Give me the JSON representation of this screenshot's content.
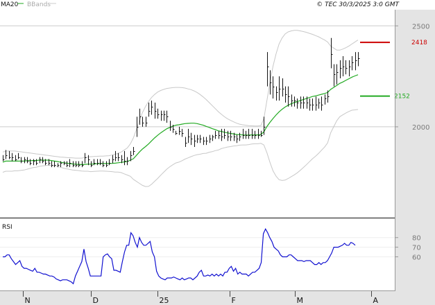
{
  "header": {
    "legend": [
      {
        "label": "MA20",
        "color": "#22aa22"
      },
      {
        "label": "BBands",
        "color": "#cccccc"
      }
    ],
    "copyright": "© TEC 30/3/2025 3:0 GMT"
  },
  "colors": {
    "price": "#111111",
    "ma20": "#22aa22",
    "bbands": "#c8c8c8",
    "rsi": "#1010d0",
    "resistance": "#cc0000",
    "support": "#22aa22",
    "grid": "#cccccc",
    "axis_bg": "#e4e4e4"
  },
  "chart_data": [
    {
      "type": "line",
      "title": "",
      "subtitle": "",
      "x_tick_labels": [
        "N",
        "D",
        "25",
        "F",
        "M",
        "A"
      ],
      "y_tick_labels": [
        "2500",
        "2000"
      ],
      "ylim": [
        1550,
        2580
      ],
      "grid": true,
      "price_bars": {
        "high": [
          1860,
          1885,
          1880,
          1870,
          1860,
          1870,
          1850,
          1850,
          1850,
          1840,
          1840,
          1840,
          1850,
          1850,
          1840,
          1840,
          1830,
          1830,
          1820,
          1830,
          1830,
          1830,
          1840,
          1830,
          1830,
          1830,
          1830,
          1870,
          1860,
          1830,
          1840,
          1840,
          1840,
          1830,
          1830,
          1840,
          1860,
          1880,
          1870,
          1860,
          1880,
          1850,
          1880,
          1900,
          2050,
          2090,
          2050,
          2050,
          2120,
          2130,
          2120,
          2090,
          2080,
          2080,
          2080,
          2030,
          2010,
          1980,
          2000,
          1990,
          1950,
          1990,
          1970,
          1960,
          1960,
          1960,
          1950,
          1950,
          1960,
          1960,
          1980,
          1980,
          1990,
          1990,
          1980,
          1980,
          1970,
          1960,
          1970,
          1990,
          1980,
          1990,
          1990,
          1980,
          1990,
          1980,
          2050,
          2370,
          2280,
          2250,
          2200,
          2250,
          2240,
          2200,
          2200,
          2160,
          2150,
          2140,
          2150,
          2150,
          2150,
          2140,
          2140,
          2150,
          2140,
          2150,
          2160,
          2180,
          2440,
          2310,
          2310,
          2330,
          2350,
          2330,
          2330,
          2350,
          2370,
          2370
        ],
        "low": [
          1830,
          1840,
          1840,
          1830,
          1830,
          1840,
          1820,
          1820,
          1820,
          1810,
          1810,
          1810,
          1820,
          1820,
          1810,
          1810,
          1800,
          1800,
          1800,
          1800,
          1810,
          1800,
          1800,
          1800,
          1800,
          1800,
          1800,
          1820,
          1810,
          1800,
          1810,
          1810,
          1810,
          1800,
          1800,
          1810,
          1820,
          1830,
          1830,
          1820,
          1810,
          1810,
          1830,
          1860,
          1950,
          2010,
          2000,
          2000,
          2050,
          2060,
          2040,
          2040,
          2030,
          2030,
          2020,
          1980,
          1970,
          1960,
          1960,
          1950,
          1900,
          1920,
          1910,
          1900,
          1920,
          1920,
          1910,
          1910,
          1920,
          1930,
          1940,
          1940,
          1930,
          1940,
          1930,
          1930,
          1930,
          1920,
          1930,
          1940,
          1940,
          1940,
          1940,
          1940,
          1940,
          1950,
          1960,
          2200,
          2160,
          2140,
          2130,
          2130,
          2150,
          2120,
          2100,
          2100,
          2100,
          2090,
          2090,
          2090,
          2090,
          2080,
          2080,
          2080,
          2090,
          2080,
          2110,
          2120,
          2290,
          2200,
          2210,
          2240,
          2250,
          2260,
          2250,
          2280,
          2280,
          2300
        ],
        "close": [
          1840,
          1860,
          1850,
          1850,
          1840,
          1850,
          1830,
          1840,
          1830,
          1820,
          1830,
          1820,
          1840,
          1830,
          1820,
          1820,
          1810,
          1810,
          1810,
          1820,
          1820,
          1810,
          1820,
          1810,
          1810,
          1810,
          1810,
          1850,
          1840,
          1810,
          1820,
          1820,
          1820,
          1810,
          1810,
          1820,
          1840,
          1850,
          1850,
          1840,
          1830,
          1830,
          1860,
          1880,
          2000,
          2050,
          2020,
          2020,
          2080,
          2100,
          2080,
          2060,
          2060,
          2060,
          2050,
          2000,
          1990,
          1970,
          1980,
          1970,
          1920,
          1950,
          1940,
          1930,
          1940,
          1940,
          1930,
          1930,
          1940,
          1950,
          1960,
          1960,
          1950,
          1960,
          1950,
          1950,
          1950,
          1940,
          1950,
          1960,
          1960,
          1960,
          1960,
          1960,
          1960,
          1960,
          2000,
          2300,
          2220,
          2200,
          2170,
          2190,
          2190,
          2160,
          2150,
          2130,
          2130,
          2120,
          2120,
          2120,
          2120,
          2110,
          2110,
          2110,
          2120,
          2110,
          2140,
          2150,
          2360,
          2260,
          2270,
          2290,
          2300,
          2290,
          2300,
          2320,
          2330,
          2340
        ]
      },
      "ma20": [
        1825,
        1830,
        1830,
        1830,
        1830,
        1830,
        1830,
        1830,
        1832,
        1832,
        1833,
        1833,
        1835,
        1835,
        1835,
        1835,
        1833,
        1830,
        1828,
        1825,
        1822,
        1820,
        1818,
        1816,
        1815,
        1814,
        1813,
        1814,
        1815,
        1815,
        1816,
        1817,
        1818,
        1818,
        1818,
        1818,
        1819,
        1820,
        1822,
        1824,
        1826,
        1828,
        1835,
        1842,
        1858,
        1875,
        1890,
        1902,
        1915,
        1930,
        1945,
        1958,
        1970,
        1980,
        1990,
        1997,
        2003,
        2008,
        2010,
        2013,
        2016,
        2017,
        2018,
        2018,
        2016,
        2012,
        2008,
        2002,
        1997,
        1991,
        1986,
        1980,
        1977,
        1973,
        1970,
        1967,
        1965,
        1962,
        1961,
        1960,
        1959,
        1959,
        1960,
        1960,
        1960,
        1962,
        1975,
        2001,
        2022,
        2041,
        2058,
        2074,
        2087,
        2098,
        2107,
        2114,
        2120,
        2125,
        2130,
        2135,
        2140,
        2145,
        2150,
        2153,
        2157,
        2161,
        2165,
        2170,
        2185,
        2195,
        2205,
        2215,
        2222,
        2230,
        2238,
        2246,
        2252,
        2258
      ],
      "bb_upper": [
        1875,
        1880,
        1880,
        1880,
        1880,
        1878,
        1876,
        1874,
        1872,
        1870,
        1868,
        1866,
        1864,
        1862,
        1860,
        1858,
        1856,
        1854,
        1852,
        1850,
        1849,
        1848,
        1847,
        1846,
        1845,
        1845,
        1845,
        1848,
        1850,
        1852,
        1853,
        1854,
        1855,
        1855,
        1856,
        1857,
        1860,
        1864,
        1868,
        1875,
        1885,
        1895,
        1915,
        1945,
        1985,
        2030,
        2070,
        2100,
        2125,
        2145,
        2160,
        2172,
        2180,
        2185,
        2190,
        2192,
        2194,
        2195,
        2195,
        2194,
        2192,
        2188,
        2184,
        2178,
        2170,
        2160,
        2148,
        2135,
        2120,
        2105,
        2090,
        2075,
        2062,
        2050,
        2040,
        2032,
        2025,
        2018,
        2013,
        2010,
        2008,
        2006,
        2005,
        2004,
        2004,
        2006,
        2040,
        2130,
        2220,
        2300,
        2360,
        2410,
        2440,
        2460,
        2470,
        2475,
        2478,
        2478,
        2475,
        2472,
        2468,
        2463,
        2458,
        2452,
        2446,
        2438,
        2430,
        2420,
        2400,
        2390,
        2380,
        2380,
        2385,
        2392,
        2400,
        2410,
        2420,
        2430
      ],
      "bb_lower": [
        1775,
        1780,
        1780,
        1780,
        1782,
        1782,
        1784,
        1786,
        1790,
        1794,
        1798,
        1800,
        1804,
        1806,
        1808,
        1810,
        1808,
        1806,
        1804,
        1800,
        1795,
        1792,
        1789,
        1786,
        1785,
        1783,
        1781,
        1780,
        1780,
        1778,
        1779,
        1780,
        1781,
        1781,
        1780,
        1779,
        1778,
        1776,
        1776,
        1773,
        1767,
        1761,
        1755,
        1740,
        1730,
        1720,
        1710,
        1704,
        1705,
        1715,
        1730,
        1744,
        1760,
        1775,
        1790,
        1802,
        1812,
        1821,
        1825,
        1832,
        1840,
        1846,
        1852,
        1858,
        1862,
        1864,
        1868,
        1869,
        1874,
        1877,
        1882,
        1885,
        1892,
        1896,
        1900,
        1902,
        1905,
        1906,
        1909,
        1910,
        1910,
        1912,
        1915,
        1916,
        1916,
        1918,
        1910,
        1872,
        1824,
        1782,
        1756,
        1738,
        1734,
        1736,
        1744,
        1753,
        1762,
        1772,
        1785,
        1798,
        1812,
        1827,
        1842,
        1854,
        1868,
        1884,
        1900,
        1920,
        1970,
        2000,
        2030,
        2050,
        2059,
        2068,
        2076,
        2082,
        2084,
        2086
      ],
      "levels": [
        {
          "value": 2418,
          "label": "2418",
          "role": "resistance"
        },
        {
          "value": 2152,
          "label": "2152",
          "role": "support"
        }
      ]
    },
    {
      "type": "line",
      "title": "RSI",
      "y_tick_labels": [
        "80",
        "70",
        "60"
      ],
      "ylim": [
        25,
        100
      ],
      "grid": true,
      "values": [
        60,
        60,
        62,
        62,
        58,
        55,
        52,
        54,
        56,
        50,
        48,
        48,
        47,
        46,
        45,
        48,
        44,
        44,
        43,
        42,
        42,
        41,
        40,
        40,
        39,
        37,
        36,
        35,
        36,
        36,
        36,
        35,
        34,
        32,
        40,
        45,
        50,
        55,
        68,
        55,
        48,
        40,
        40,
        40,
        40,
        40,
        40,
        60,
        62,
        63,
        60,
        58,
        46,
        46,
        45,
        44,
        55,
        65,
        72,
        72,
        85,
        82,
        75,
        70,
        80,
        75,
        72,
        72,
        74,
        76,
        65,
        60,
        45,
        40,
        38,
        37,
        36,
        38,
        38,
        38,
        39,
        38,
        37,
        36,
        38,
        36,
        37,
        38,
        38,
        36,
        38,
        40,
        44,
        46,
        40,
        40,
        41,
        40,
        42,
        40,
        42,
        40,
        42,
        40,
        44,
        44,
        48,
        50,
        45,
        48,
        42,
        44,
        42,
        42,
        42,
        40,
        42,
        44,
        44,
        46,
        48,
        54,
        84,
        89,
        85,
        80,
        76,
        70,
        68,
        66,
        62,
        60,
        60,
        60,
        62,
        62,
        60,
        58,
        56,
        56,
        56,
        55,
        56,
        56,
        56,
        54,
        52,
        52,
        54,
        52,
        54,
        54,
        56,
        60,
        64,
        70,
        70,
        70,
        71,
        72,
        74,
        72,
        72,
        75,
        74,
        72
      ]
    }
  ]
}
